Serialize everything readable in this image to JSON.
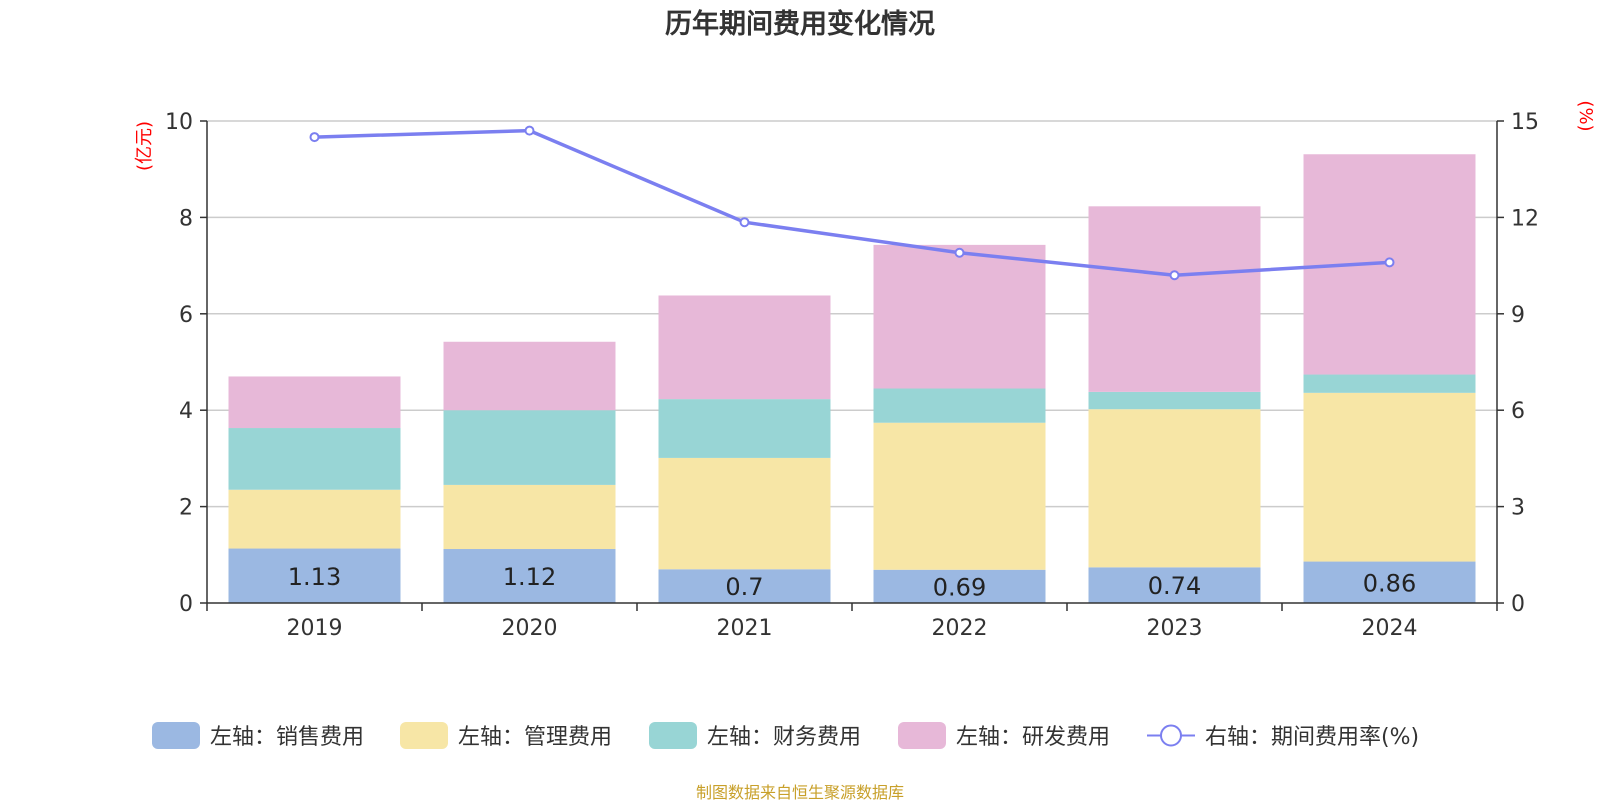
{
  "chart_data": {
    "type": "bar",
    "title": "历年期间费用变化情况",
    "categories": [
      "2019",
      "2020",
      "2021",
      "2022",
      "2023",
      "2024"
    ],
    "stacked": true,
    "left_axis": {
      "unit_label": "(亿元)",
      "ylim": [
        0,
        10
      ],
      "ticks": [
        "0",
        "2",
        "4",
        "6",
        "8",
        "10"
      ]
    },
    "right_axis": {
      "unit_label": "(%)",
      "ylim": [
        0,
        15
      ],
      "ticks": [
        "0",
        "3",
        "6",
        "9",
        "12",
        "15"
      ]
    },
    "series": [
      {
        "name": "左轴：销售费用",
        "type": "bar",
        "axis": "left",
        "color": "#9bb8e2",
        "values": [
          1.13,
          1.12,
          0.7,
          0.69,
          0.74,
          0.86
        ],
        "data_labels": [
          "1.13",
          "1.12",
          "0.7",
          "0.69",
          "0.74",
          "0.86"
        ]
      },
      {
        "name": "左轴：管理费用",
        "type": "bar",
        "axis": "left",
        "color": "#f7e6a6",
        "values": [
          1.22,
          1.33,
          2.31,
          3.05,
          3.28,
          3.5
        ]
      },
      {
        "name": "左轴：财务费用",
        "type": "bar",
        "axis": "left",
        "color": "#98d5d5",
        "values": [
          1.28,
          1.55,
          1.22,
          0.71,
          0.36,
          0.38
        ]
      },
      {
        "name": "左轴：研发费用",
        "type": "bar",
        "axis": "left",
        "color": "#e7b8d8",
        "values": [
          1.07,
          1.42,
          2.15,
          2.98,
          3.85,
          4.57
        ]
      },
      {
        "name": "右轴：期间费用率(%)",
        "type": "line",
        "axis": "right",
        "color": "#7b7ff0",
        "values": [
          14.5,
          14.7,
          11.85,
          10.9,
          10.2,
          10.6
        ]
      }
    ],
    "grid": true,
    "legend_position": "bottom"
  },
  "footer": {
    "source": "制图数据来自恒生聚源数据库"
  }
}
